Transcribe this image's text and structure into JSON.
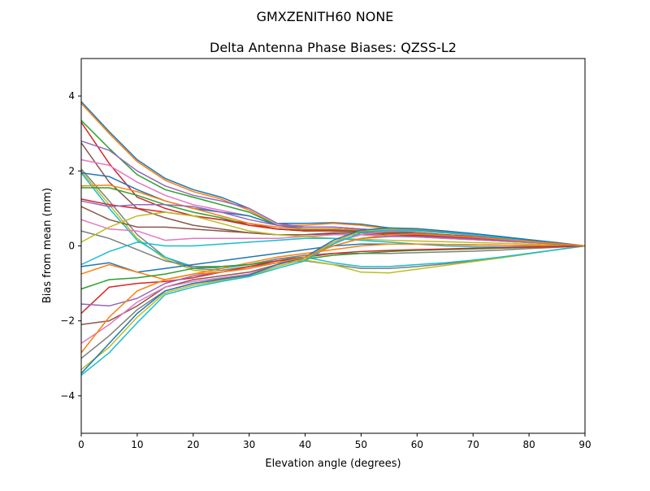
{
  "chart_data": {
    "type": "line",
    "suptitle": "GMXZENITH60     NONE",
    "title": "Delta Antenna Phase Biases: QZSS-L2",
    "xlabel": "Elevation angle (degrees)",
    "ylabel": "Bias from mean (mm)",
    "xlim": [
      0,
      90
    ],
    "ylim": [
      -5,
      5
    ],
    "xticks": [
      0,
      10,
      20,
      30,
      40,
      50,
      60,
      70,
      80,
      90
    ],
    "yticks": [
      -4,
      -2,
      0,
      2,
      4
    ],
    "ytick_labels": [
      "−4",
      "−2",
      "0",
      "2",
      "4"
    ],
    "grid": false,
    "legend": "none",
    "colors": [
      "#1f77b4",
      "#ff7f0e",
      "#2ca02c",
      "#d62728",
      "#9467bd",
      "#8c564b",
      "#e377c2",
      "#7f7f7f",
      "#bcbd22",
      "#17becf"
    ],
    "x": [
      0,
      5,
      10,
      15,
      20,
      25,
      30,
      35,
      40,
      45,
      50,
      55,
      60,
      65,
      70,
      75,
      80,
      85,
      90
    ],
    "series": [
      {
        "values": [
          3.85,
          3.05,
          2.3,
          1.8,
          1.5,
          1.3,
          1.0,
          0.6,
          0.6,
          0.62,
          0.58,
          0.48,
          0.42,
          0.38,
          0.32,
          0.25,
          0.17,
          0.09,
          0
        ]
      },
      {
        "values": [
          3.8,
          3.0,
          2.25,
          1.75,
          1.45,
          1.25,
          0.95,
          0.55,
          0.55,
          0.6,
          0.55,
          0.45,
          0.4,
          0.35,
          0.3,
          0.23,
          0.16,
          0.08,
          0
        ]
      },
      {
        "values": [
          3.35,
          2.6,
          1.9,
          1.5,
          1.3,
          1.1,
          0.9,
          0.55,
          0.5,
          0.5,
          0.45,
          0.38,
          0.33,
          0.3,
          0.26,
          0.2,
          0.14,
          0.07,
          0
        ]
      },
      {
        "values": [
          3.3,
          2.2,
          1.3,
          1.0,
          0.8,
          0.7,
          0.6,
          0.45,
          0.4,
          0.42,
          0.4,
          0.35,
          0.3,
          0.27,
          0.23,
          0.18,
          0.12,
          0.06,
          0
        ]
      },
      {
        "values": [
          2.8,
          2.55,
          2.0,
          1.6,
          1.35,
          1.2,
          1.0,
          0.6,
          0.5,
          0.5,
          0.45,
          0.4,
          0.35,
          0.3,
          0.25,
          0.2,
          0.14,
          0.07,
          0
        ]
      },
      {
        "values": [
          2.75,
          1.7,
          1.0,
          0.75,
          0.55,
          0.45,
          0.35,
          0.3,
          0.3,
          0.35,
          0.35,
          0.3,
          0.27,
          0.24,
          0.2,
          0.16,
          0.1,
          0.05,
          0
        ]
      },
      {
        "values": [
          2.3,
          2.15,
          1.7,
          1.35,
          1.1,
          0.95,
          0.8,
          0.55,
          0.5,
          0.5,
          0.45,
          0.4,
          0.35,
          0.3,
          0.25,
          0.2,
          0.14,
          0.07,
          0
        ]
      },
      {
        "values": [
          2.05,
          1.2,
          0.3,
          -0.3,
          -0.6,
          -0.65,
          -0.55,
          -0.45,
          -0.4,
          -0.5,
          -0.6,
          -0.6,
          -0.55,
          -0.48,
          -0.4,
          -0.3,
          -0.2,
          -0.1,
          0
        ]
      },
      {
        "values": [
          2.0,
          1.1,
          0.2,
          -0.35,
          -0.65,
          -0.7,
          -0.6,
          -0.45,
          -0.38,
          -0.5,
          -0.7,
          -0.72,
          -0.62,
          -0.52,
          -0.42,
          -0.32,
          -0.21,
          -0.1,
          0
        ]
      },
      {
        "values": [
          1.95,
          1.0,
          0.15,
          -0.3,
          -0.55,
          -0.6,
          -0.5,
          -0.35,
          -0.3,
          -0.45,
          -0.55,
          -0.55,
          -0.5,
          -0.45,
          -0.38,
          -0.3,
          -0.2,
          -0.1,
          0
        ]
      },
      {
        "values": [
          1.95,
          1.85,
          1.5,
          1.2,
          1.0,
          0.9,
          0.8,
          0.55,
          0.45,
          0.45,
          0.42,
          0.38,
          0.33,
          0.28,
          0.24,
          0.19,
          0.13,
          0.06,
          0
        ]
      },
      {
        "values": [
          1.6,
          1.62,
          1.45,
          1.2,
          1.0,
          0.8,
          0.6,
          0.5,
          0.45,
          0.45,
          0.42,
          0.38,
          0.33,
          0.28,
          0.24,
          0.19,
          0.13,
          0.06,
          0
        ]
      },
      {
        "values": [
          1.55,
          1.55,
          1.35,
          1.1,
          0.9,
          0.75,
          0.55,
          0.45,
          0.42,
          0.42,
          0.4,
          0.35,
          0.3,
          0.26,
          0.22,
          0.17,
          0.11,
          0.05,
          0
        ]
      },
      {
        "values": [
          1.25,
          1.1,
          1.0,
          0.9,
          0.8,
          0.7,
          0.55,
          0.45,
          0.4,
          0.4,
          0.38,
          0.33,
          0.28,
          0.24,
          0.2,
          0.15,
          0.1,
          0.05,
          0
        ]
      },
      {
        "values": [
          1.2,
          1.05,
          1.1,
          1.1,
          1.05,
          0.9,
          0.7,
          0.55,
          0.5,
          0.5,
          0.45,
          0.4,
          0.35,
          0.3,
          0.25,
          0.2,
          0.13,
          0.06,
          0
        ]
      },
      {
        "values": [
          1.05,
          0.7,
          0.5,
          0.5,
          0.45,
          0.4,
          0.35,
          0.3,
          0.3,
          0.32,
          0.3,
          0.27,
          0.24,
          0.2,
          0.17,
          0.13,
          0.09,
          0.05,
          0
        ]
      },
      {
        "values": [
          0.7,
          0.45,
          0.4,
          0.15,
          0.2,
          0.2,
          0.2,
          0.2,
          0.25,
          0.3,
          0.3,
          0.27,
          0.24,
          0.2,
          0.17,
          0.13,
          0.09,
          0.05,
          0
        ]
      },
      {
        "values": [
          0.4,
          0.2,
          -0.1,
          -0.4,
          -0.55,
          -0.55,
          -0.5,
          -0.35,
          -0.25,
          -0.2,
          -0.2,
          -0.2,
          -0.18,
          -0.16,
          -0.14,
          -0.11,
          -0.07,
          -0.04,
          0
        ]
      },
      {
        "values": [
          0.1,
          0.5,
          0.8,
          0.9,
          0.8,
          0.6,
          0.4,
          0.3,
          0.25,
          0.2,
          0.18,
          0.15,
          0.13,
          0.11,
          0.09,
          0.07,
          0.05,
          0.02,
          0
        ]
      },
      {
        "values": [
          -0.5,
          -0.15,
          0.1,
          0.0,
          0.0,
          0.05,
          0.1,
          0.15,
          0.2,
          0.2,
          0.15,
          0.1,
          0.05,
          0.0,
          -0.02,
          -0.03,
          -0.02,
          -0.01,
          0
        ]
      },
      {
        "values": [
          -0.55,
          -0.45,
          -0.7,
          -0.6,
          -0.5,
          -0.4,
          -0.3,
          -0.2,
          -0.1,
          0.0,
          0.05,
          0.05,
          0.05,
          0.04,
          0.03,
          0.02,
          0.01,
          0.0,
          0
        ]
      },
      {
        "values": [
          -0.75,
          -0.5,
          -0.7,
          -0.9,
          -0.75,
          -0.6,
          -0.45,
          -0.3,
          -0.2,
          -0.1,
          0.0,
          0.05,
          0.05,
          0.04,
          0.03,
          0.02,
          0.01,
          0.0,
          0
        ]
      },
      {
        "values": [
          -1.15,
          -0.9,
          -0.85,
          -0.75,
          -0.6,
          -0.55,
          -0.5,
          -0.4,
          -0.35,
          -0.25,
          -0.2,
          -0.15,
          -0.12,
          -0.1,
          -0.08,
          -0.06,
          -0.04,
          -0.02,
          0
        ]
      },
      {
        "values": [
          -1.8,
          -1.1,
          -1.0,
          -0.95,
          -0.85,
          -0.7,
          -0.55,
          -0.4,
          -0.3,
          -0.2,
          -0.15,
          -0.12,
          -0.1,
          -0.08,
          -0.06,
          -0.05,
          -0.03,
          -0.02,
          0
        ]
      },
      {
        "values": [
          -1.55,
          -1.6,
          -1.4,
          -1.0,
          -0.8,
          -0.7,
          -0.6,
          -0.45,
          -0.3,
          0.0,
          0.2,
          0.25,
          0.25,
          0.22,
          0.18,
          0.14,
          0.1,
          0.05,
          0
        ]
      },
      {
        "values": [
          -2.1,
          -2.0,
          -1.6,
          -1.1,
          -0.9,
          -0.8,
          -0.7,
          -0.5,
          -0.3,
          0.1,
          0.3,
          0.35,
          0.35,
          0.3,
          0.25,
          0.2,
          0.13,
          0.06,
          0
        ]
      },
      {
        "values": [
          -2.6,
          -2.1,
          -1.5,
          -1.1,
          -0.95,
          -0.85,
          -0.75,
          -0.5,
          -0.3,
          0.1,
          0.3,
          0.4,
          0.4,
          0.35,
          0.28,
          0.22,
          0.15,
          0.07,
          0
        ]
      },
      {
        "values": [
          -3.0,
          -2.4,
          -1.7,
          -1.2,
          -1.0,
          -0.9,
          -0.8,
          -0.55,
          -0.35,
          0.05,
          0.35,
          0.42,
          0.42,
          0.37,
          0.3,
          0.23,
          0.15,
          0.07,
          0
        ]
      },
      {
        "values": [
          -3.3,
          -2.7,
          -1.9,
          -1.25,
          -1.05,
          -0.92,
          -0.8,
          -0.55,
          -0.35,
          0.1,
          0.4,
          0.45,
          0.45,
          0.4,
          0.32,
          0.24,
          0.16,
          0.08,
          0
        ]
      },
      {
        "values": [
          -3.45,
          -2.85,
          -2.05,
          -1.3,
          -1.1,
          -0.95,
          -0.82,
          -0.6,
          -0.4,
          0.05,
          0.35,
          0.42,
          0.4,
          0.35,
          0.3,
          0.22,
          0.15,
          0.07,
          0
        ]
      },
      {
        "values": [
          -3.4,
          -2.6,
          -1.8,
          -1.2,
          -1.0,
          -0.88,
          -0.78,
          -0.5,
          -0.3,
          0.15,
          0.42,
          0.48,
          0.46,
          0.4,
          0.33,
          0.25,
          0.16,
          0.08,
          0
        ]
      },
      {
        "values": [
          -2.85,
          -1.9,
          -1.2,
          -0.9,
          -0.75,
          -0.7,
          -0.6,
          -0.45,
          -0.3,
          0.0,
          0.2,
          0.3,
          0.32,
          0.28,
          0.23,
          0.18,
          0.12,
          0.06,
          0
        ]
      }
    ]
  }
}
